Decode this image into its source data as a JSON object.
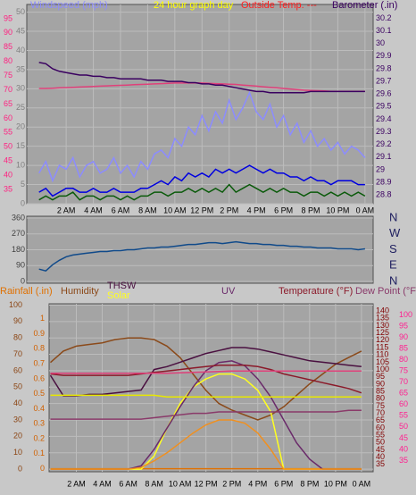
{
  "chart_data": [
    {
      "type": "line",
      "title": "24 hour graph day",
      "title_color": "#ffff00",
      "annotation": "Outside Temp. ---",
      "annotation_color": "#ff2020",
      "xlim": [
        -0.9,
        24.6
      ],
      "xticks": [
        {
          "value": 2,
          "label": "2 AM"
        },
        {
          "value": 4,
          "label": "4 AM"
        },
        {
          "value": 6,
          "label": "6 AM"
        },
        {
          "value": 8,
          "label": "8 AM"
        },
        {
          "value": 10,
          "label": "10 AM"
        },
        {
          "value": 12,
          "label": "12 PM"
        },
        {
          "value": 14,
          "label": "2 PM"
        },
        {
          "value": 16,
          "label": "4 PM"
        },
        {
          "value": 18,
          "label": "6 PM"
        },
        {
          "value": 20,
          "label": "8 PM"
        },
        {
          "value": 22,
          "label": "10 PM"
        },
        {
          "value": 24,
          "label": "0 AM"
        }
      ],
      "grid": true,
      "axes": [
        {
          "side": "left",
          "color": "#ff2080",
          "ylim": [
            30,
            100
          ],
          "yticks": [
            35,
            40,
            45,
            50,
            55,
            60,
            65,
            70,
            75,
            80,
            85,
            90,
            95
          ]
        },
        {
          "side": "left",
          "color": "#808080",
          "ylim": [
            0,
            52
          ],
          "yticks": [
            0,
            5,
            10,
            15,
            20,
            25,
            30,
            35,
            40,
            45,
            50
          ],
          "grid": true
        },
        {
          "side": "right",
          "color": "#3a0060",
          "ylim": [
            28.73,
            30.31
          ],
          "yticks": [
            28.8,
            28.9,
            29,
            29.1,
            29.2,
            29.3,
            29.4,
            29.5,
            29.6,
            29.7,
            29.8,
            29.9,
            30,
            30.1,
            30.2
          ]
        }
      ],
      "x": [
        0,
        0.5,
        1,
        1.5,
        2,
        2.5,
        3,
        3.5,
        4,
        4.5,
        5,
        5.5,
        6,
        6.5,
        7,
        7.5,
        8,
        8.5,
        9,
        9.5,
        10,
        10.5,
        11,
        11.5,
        12,
        12.5,
        13,
        13.5,
        14,
        14.5,
        15,
        15.5,
        16,
        16.5,
        17,
        17.5,
        18,
        18.5,
        19,
        19.5,
        20,
        20.5,
        21,
        21.5,
        22,
        22.5,
        23,
        23.5,
        24
      ],
      "series": [
        {
          "name": "Windspeed (mph)",
          "color": "#8c8cff",
          "axis": 1,
          "values": [
            8,
            11,
            6,
            10,
            9,
            12,
            7,
            10,
            11,
            8,
            9,
            12,
            8,
            10,
            7,
            11,
            9,
            13,
            14,
            12,
            17,
            15,
            20,
            18,
            23,
            19,
            24,
            21,
            27,
            22,
            25,
            29,
            24,
            22,
            26,
            20,
            23,
            18,
            21,
            16,
            19,
            15,
            17,
            14,
            16,
            13,
            15,
            14,
            12
          ]
        },
        {
          "color": "#0000e0",
          "axis": 1,
          "values": [
            3,
            4,
            2,
            3,
            4,
            4,
            3,
            3,
            4,
            3,
            3,
            4,
            3,
            3,
            3,
            4,
            4,
            5,
            6,
            5,
            7,
            6,
            8,
            7,
            8,
            7,
            9,
            8,
            9,
            8,
            9,
            10,
            9,
            8,
            9,
            8,
            8,
            7,
            7,
            6,
            7,
            6,
            6,
            5,
            6,
            6,
            6,
            5,
            5
          ]
        },
        {
          "color": "#0a5a0a",
          "axis": 1,
          "values": [
            1,
            2,
            1,
            2,
            2,
            3,
            1,
            2,
            2,
            1,
            2,
            2,
            1,
            2,
            1,
            2,
            2,
            3,
            3,
            2,
            3,
            3,
            4,
            3,
            4,
            3,
            4,
            3,
            5,
            3,
            4,
            5,
            4,
            3,
            4,
            3,
            4,
            3,
            3,
            2,
            3,
            3,
            2,
            3,
            2,
            3,
            2,
            3,
            2
          ]
        },
        {
          "color": "#e0407a",
          "axis": 0,
          "values": [
            70.5,
            70.5,
            70.6,
            70.7,
            70.8,
            70.9,
            71,
            71.1,
            71.2,
            71.3,
            71.4,
            71.5,
            71.6,
            71.7,
            71.8,
            71.9,
            72,
            72.1,
            72.2,
            72.3,
            72.4,
            72.4,
            72.4,
            72.4,
            72.4,
            72.3,
            72.2,
            72.1,
            72,
            71.9,
            71.7,
            71.5,
            71.3,
            71.1,
            70.9,
            70.7,
            70.5,
            70.3,
            70.1,
            69.9,
            69.8,
            69.7,
            69.6,
            69.5,
            69.5,
            69.5,
            69.5,
            69.5,
            69.5
          ]
        },
        {
          "name": "Barometer (.in)",
          "color": "#3a0060",
          "axis": 2,
          "values": [
            29.85,
            29.84,
            29.8,
            29.78,
            29.77,
            29.76,
            29.75,
            29.75,
            29.74,
            29.74,
            29.73,
            29.73,
            29.72,
            29.72,
            29.72,
            29.72,
            29.71,
            29.71,
            29.71,
            29.7,
            29.7,
            29.7,
            29.69,
            29.69,
            29.68,
            29.68,
            29.67,
            29.67,
            29.66,
            29.65,
            29.64,
            29.63,
            29.62,
            29.62,
            29.61,
            29.61,
            29.61,
            29.61,
            29.61,
            29.61,
            29.62,
            29.62,
            29.62,
            29.62,
            29.62,
            29.62,
            29.62,
            29.62,
            29.62
          ]
        }
      ]
    },
    {
      "type": "line",
      "xlim": [
        -0.9,
        24.6
      ],
      "grid": true,
      "axes": [
        {
          "side": "left",
          "color": "#404040",
          "ylim": [
            -10,
            370
          ],
          "yticks": [
            0,
            90,
            180,
            270,
            360
          ],
          "grid": true
        },
        {
          "side": "right",
          "color": "#202060",
          "big": true,
          "ylim": [
            -10,
            370
          ],
          "yticks": [
            {
              "value": 360,
              "label": "N"
            },
            {
              "value": 270,
              "label": "W"
            },
            {
              "value": 180,
              "label": "S"
            },
            {
              "value": 90,
              "label": "E"
            },
            {
              "value": 0,
              "label": "N"
            }
          ]
        }
      ],
      "x": [
        0,
        0.5,
        1,
        1.5,
        2,
        2.5,
        3,
        3.5,
        4,
        4.5,
        5,
        5.5,
        6,
        6.5,
        7,
        7.5,
        8,
        8.5,
        9,
        9.5,
        10,
        10.5,
        11,
        11.5,
        12,
        12.5,
        13,
        13.5,
        14,
        14.5,
        15,
        15.5,
        16,
        16.5,
        17,
        17.5,
        18,
        18.5,
        19,
        19.5,
        20,
        20.5,
        21,
        21.5,
        22,
        22.5,
        23,
        23.5,
        24
      ],
      "series": [
        {
          "color": "#104a8a",
          "axis": 0,
          "values": [
            70,
            60,
            95,
            120,
            140,
            150,
            155,
            160,
            165,
            170,
            170,
            175,
            175,
            180,
            180,
            185,
            190,
            190,
            195,
            195,
            200,
            205,
            210,
            210,
            215,
            220,
            220,
            215,
            220,
            225,
            220,
            215,
            215,
            210,
            210,
            205,
            205,
            200,
            200,
            195,
            195,
            190,
            190,
            190,
            185,
            185,
            185,
            180,
            185
          ]
        }
      ]
    },
    {
      "type": "line",
      "xlim": [
        -0.1,
        24.9
      ],
      "xticks": [
        {
          "value": 2,
          "label": "2 AM"
        },
        {
          "value": 4,
          "label": "4 AM"
        },
        {
          "value": 6,
          "label": "6 AM"
        },
        {
          "value": 8,
          "label": "8 AM"
        },
        {
          "value": 10,
          "label": "10 AM"
        },
        {
          "value": 12,
          "label": "12 PM"
        },
        {
          "value": 14,
          "label": "2 PM"
        },
        {
          "value": 16,
          "label": "4 PM"
        },
        {
          "value": 18,
          "label": "6 PM"
        },
        {
          "value": 20,
          "label": "8 PM"
        },
        {
          "value": 22,
          "label": "10 PM"
        },
        {
          "value": 24,
          "label": "0 AM"
        }
      ],
      "grid": true,
      "axes": [
        {
          "side": "left",
          "color": "#8b4513",
          "ylim": [
            -1.6,
            100.8
          ],
          "yticks": [
            0,
            10,
            20,
            30,
            40,
            50,
            60,
            70,
            80,
            90,
            100
          ],
          "grid": true
        },
        {
          "side": "left",
          "color": "#d06000",
          "ylim": [
            -0.02,
            1.1
          ],
          "yticks": [
            0,
            0.1,
            0.2,
            0.3,
            0.4,
            0.5,
            0.6,
            0.7,
            0.8,
            0.9,
            1
          ]
        },
        {
          "side": "right",
          "color": "#800000",
          "ylim": [
            30,
            145
          ],
          "yticks": [
            35,
            40,
            45,
            50,
            55,
            60,
            65,
            70,
            75,
            80,
            85,
            90,
            95,
            100,
            105,
            110,
            115,
            120,
            125,
            130,
            135,
            140
          ]
        },
        {
          "side": "right",
          "color": "#ff2090",
          "ylim": [
            30,
            105
          ],
          "yticks": [
            35,
            40,
            45,
            50,
            55,
            60,
            65,
            70,
            75,
            80,
            85,
            90,
            95,
            100
          ]
        }
      ],
      "x": [
        0,
        1,
        2,
        3,
        4,
        5,
        6,
        7,
        8,
        9,
        10,
        11,
        12,
        13,
        14,
        15,
        16,
        17,
        18,
        19,
        20,
        21,
        22,
        23,
        24
      ],
      "series": [
        {
          "name": "Rainfall (.in)",
          "color": "#e07000",
          "axis": 1,
          "values": [
            0,
            0,
            0,
            0,
            0,
            0,
            0,
            0,
            0,
            0,
            0,
            0,
            0,
            0,
            0,
            0,
            0,
            0,
            0,
            0,
            0,
            0,
            0,
            0,
            0
          ]
        },
        {
          "name": "Humidity",
          "color": "#8b4a1a",
          "axis": 0,
          "values": [
            65,
            72,
            75,
            76,
            77,
            79,
            80,
            80,
            79,
            75,
            68,
            58,
            48,
            40,
            36,
            33,
            30,
            33,
            38,
            45,
            52,
            58,
            64,
            68,
            72
          ]
        },
        {
          "name": "THSW",
          "color": "#4a1040",
          "axis": 2,
          "values": [
            96,
            82,
            82,
            83,
            83,
            84,
            85,
            86,
            100,
            102,
            105,
            108,
            111,
            113,
            115,
            115,
            114,
            112,
            110,
            108,
            106,
            105,
            104,
            103,
            102
          ]
        },
        {
          "name": "Solar",
          "color": "#ffff20",
          "axis": 0,
          "values": [
            0,
            0,
            0,
            0,
            0,
            0,
            0,
            0,
            8,
            25,
            40,
            50,
            55,
            58,
            58,
            55,
            48,
            35,
            0,
            0,
            0,
            0,
            0,
            0,
            0
          ]
        },
        {
          "name": "UV",
          "color": "#6a2a6a",
          "axis": 0,
          "values": [
            0,
            0,
            0,
            0,
            0,
            0,
            0,
            2,
            12,
            25,
            38,
            50,
            60,
            65,
            66,
            63,
            55,
            44,
            30,
            16,
            6,
            0,
            0,
            0,
            0
          ]
        },
        {
          "name": "Temperature (°F)",
          "color": "#8b1a2a",
          "axis": 2,
          "values": [
            97,
            96,
            96,
            96,
            96,
            96,
            96,
            97,
            98,
            99,
            100,
            101,
            102,
            103,
            103,
            103,
            102,
            100,
            97,
            95,
            93,
            91,
            89,
            87,
            84
          ]
        },
        {
          "name": "Dew Point (°F)",
          "color": "#8a3a6a",
          "axis": 2,
          "values": [
            66,
            66,
            66,
            66,
            66,
            66,
            66,
            66,
            67,
            68,
            69,
            70,
            70,
            71,
            71,
            71,
            71,
            71,
            71,
            71,
            71,
            71,
            71,
            72,
            72
          ]
        },
        {
          "color": "#e0407a",
          "axis": 3,
          "values": [
            74,
            74,
            74,
            74,
            74,
            74,
            74,
            74,
            74,
            74,
            74.2,
            74.4,
            74.6,
            74.8,
            75,
            75,
            75,
            75,
            75,
            75,
            75,
            75,
            75,
            75,
            75
          ]
        },
        {
          "color": "#f09020",
          "axis": 0,
          "values": [
            0,
            0,
            0,
            0,
            0,
            0,
            0,
            1,
            5,
            10,
            16,
            22,
            27,
            30,
            30,
            28,
            22,
            12,
            0,
            0,
            0,
            0,
            0,
            0,
            0
          ]
        },
        {
          "color": "#e8e800",
          "axis": 0,
          "values": [
            45,
            45,
            45,
            45,
            45,
            45,
            45,
            45,
            45,
            44,
            44,
            44,
            44,
            44,
            44,
            44,
            44,
            44,
            44,
            44,
            44,
            44,
            44,
            44,
            44
          ]
        }
      ]
    }
  ]
}
